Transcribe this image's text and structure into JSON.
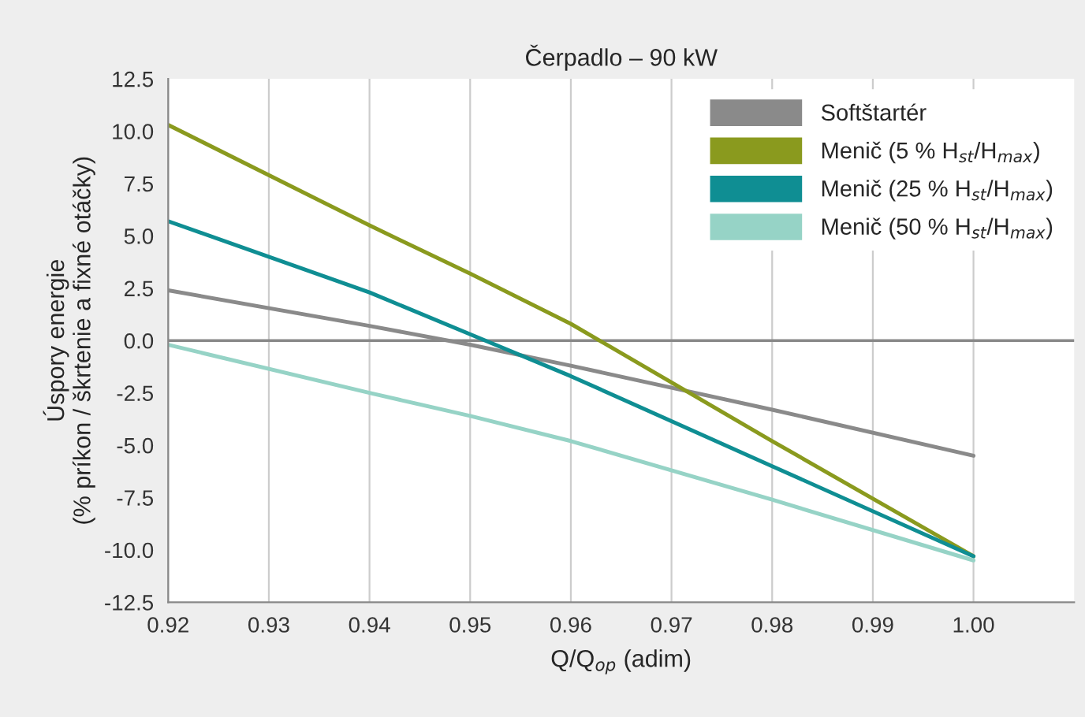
{
  "chart_data": {
    "type": "line",
    "title": "Čerpadlo – 90 kW",
    "xlabel": "Q/Q$_{op}$ (adim)",
    "ylabel": "Úspory energie\n(% príkon / škrtenie a fixné otáčky)",
    "x": [
      0.92,
      0.94,
      0.95,
      0.96,
      0.98,
      1.0
    ],
    "series": [
      {
        "name": "Softštartér",
        "color": "#8a8a8a",
        "values": [
          2.4,
          0.7,
          -0.2,
          -1.2,
          -3.3,
          -5.5
        ]
      },
      {
        "name": "Menič (5 % H$_{st}$/H$_{max}$)",
        "color": "#8a9a1e",
        "values": [
          10.3,
          5.5,
          3.2,
          0.8,
          -4.8,
          -10.3
        ]
      },
      {
        "name": "Menič (25 % H$_{st}$/H$_{max}$)",
        "color": "#0f8e93",
        "values": [
          5.7,
          2.3,
          0.3,
          -1.7,
          -6.0,
          -10.3
        ]
      },
      {
        "name": "Menič (50 % H$_{st}$/H$_{max}$)",
        "color": "#96d3c6",
        "values": [
          -0.2,
          -2.5,
          -3.6,
          -4.8,
          -7.6,
          -10.5
        ]
      }
    ],
    "xlim": [
      0.92,
      1.01
    ],
    "xticks": [
      0.92,
      0.93,
      0.94,
      0.95,
      0.96,
      0.97,
      0.98,
      0.99,
      {
        "value": 1.0,
        "label": "1.00"
      }
    ],
    "ylim": [
      -12.5,
      12.5
    ],
    "yticks": [
      12.5,
      {
        "value": 10,
        "label": "10.0"
      },
      {
        "value": 7.5,
        "label": "7.5"
      },
      {
        "value": 5,
        "label": "5.0"
      },
      {
        "value": 2.5,
        "label": "2.5"
      },
      {
        "value": 0,
        "label": "0.0"
      },
      {
        "value": -2.5,
        "label": "-2.5"
      },
      {
        "value": -5,
        "label": "-5.0"
      },
      {
        "value": -7.5,
        "label": "-7.5"
      },
      {
        "value": -10,
        "label": "-10.0"
      },
      {
        "value": -12.5,
        "label": "-12.5"
      }
    ],
    "ref_lines": [
      {
        "axis": "y",
        "value": 0,
        "color": "#888888"
      }
    ],
    "grid": "x",
    "legend": "top right",
    "marker": "none",
    "line_style": "solid"
  }
}
